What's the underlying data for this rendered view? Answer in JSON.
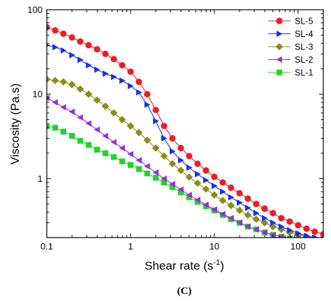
{
  "caption": "(C)",
  "chart_data": {
    "type": "line",
    "xlabel": "Shear rate (s",
    "xlabel_sup": "-1",
    "xlabel_end": ")",
    "ylabel": "Viscosity (Pa.s)",
    "x_scale": "log",
    "y_scale": "log",
    "xlim": [
      0.1,
      200
    ],
    "ylim": [
      0.2,
      100
    ],
    "x_ticks": [
      0.1,
      1,
      10,
      100
    ],
    "x_tick_labels": [
      "0.1",
      "1",
      "10",
      "100"
    ],
    "y_ticks": [
      1,
      10,
      100
    ],
    "y_tick_labels": [
      "1",
      "10",
      "100"
    ],
    "legend_position": "top-right",
    "grid": false,
    "x": [
      0.1,
      0.126,
      0.158,
      0.2,
      0.251,
      0.316,
      0.398,
      0.501,
      0.631,
      0.794,
      1,
      1.26,
      1.58,
      2,
      2.51,
      3.16,
      3.98,
      5.01,
      6.31,
      7.94,
      10,
      12.6,
      15.8,
      20,
      25.1,
      31.6,
      39.8,
      50.1,
      63.1,
      79.4,
      100,
      126,
      158,
      200
    ],
    "series": [
      {
        "name": "SL-5",
        "color": "#ee1c25",
        "marker": "circle",
        "values": [
          62,
          57,
          52,
          47,
          42,
          38,
          34,
          30,
          26,
          22,
          18.5,
          14,
          10,
          6.5,
          4.2,
          3.0,
          2.3,
          1.85,
          1.5,
          1.25,
          1.05,
          0.9,
          0.78,
          0.67,
          0.58,
          0.5,
          0.44,
          0.39,
          0.34,
          0.31,
          0.28,
          0.255,
          0.235,
          0.22
        ]
      },
      {
        "name": "SL-4",
        "color": "#1a2ef0",
        "marker": "triangle-right",
        "values": [
          38,
          36,
          33,
          29,
          25.5,
          22,
          19.5,
          17.5,
          16,
          14.5,
          12.5,
          10.5,
          7.5,
          4.8,
          3.0,
          2.1,
          1.65,
          1.35,
          1.13,
          0.96,
          0.82,
          0.7,
          0.6,
          0.52,
          0.45,
          0.39,
          0.34,
          0.3,
          0.27,
          0.245,
          0.225,
          0.21,
          0.2,
          0.19
        ]
      },
      {
        "name": "SL-3",
        "color": "#8b8c14",
        "marker": "diamond",
        "values": [
          15,
          14.5,
          14,
          13,
          11.5,
          10,
          8.5,
          7.2,
          6,
          5,
          4.2,
          3.5,
          2.85,
          2.3,
          1.85,
          1.5,
          1.25,
          1.04,
          0.88,
          0.75,
          0.64,
          0.55,
          0.48,
          0.42,
          0.37,
          0.33,
          0.3,
          0.27,
          0.25,
          0.23,
          0.215,
          0.205,
          0.195,
          0.19
        ]
      },
      {
        "name": "SL-2",
        "color": "#9a2fd6",
        "marker": "triangle-left",
        "values": [
          9,
          8,
          7,
          6.2,
          5.3,
          4.5,
          3.8,
          3.2,
          2.7,
          2.3,
          1.95,
          1.65,
          1.4,
          1.18,
          1.0,
          0.86,
          0.74,
          0.64,
          0.56,
          0.49,
          0.43,
          0.38,
          0.34,
          0.3,
          0.27,
          0.25,
          0.23,
          0.215,
          0.205,
          0.195,
          0.19,
          0.185,
          0.18,
          0.175
        ]
      },
      {
        "name": "SL-1",
        "color": "#1ed62a",
        "marker": "square",
        "values": [
          4.2,
          4.0,
          3.6,
          3.2,
          2.8,
          2.5,
          2.2,
          2.0,
          1.8,
          1.6,
          1.45,
          1.3,
          1.15,
          1.02,
          0.9,
          0.79,
          0.69,
          0.6,
          0.53,
          0.47,
          0.42,
          0.37,
          0.33,
          0.3,
          0.27,
          0.25,
          0.23,
          0.215,
          0.205,
          0.195,
          0.19,
          0.185,
          0.18,
          0.175
        ]
      }
    ]
  }
}
